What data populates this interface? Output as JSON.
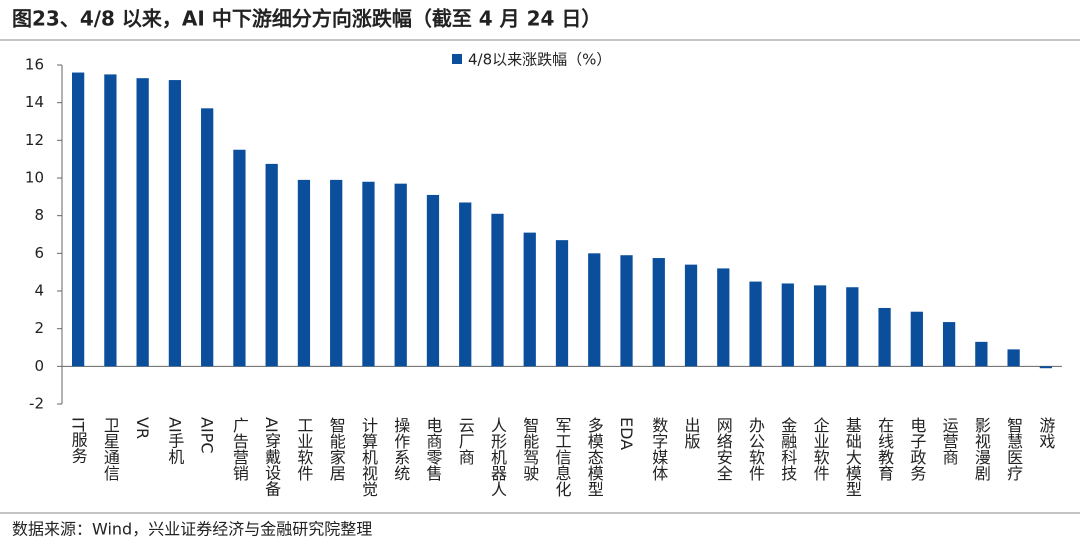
{
  "chart_data": {
    "type": "bar",
    "title": "图23、4/8 以来，AI 中下游细分方向涨跌幅（截至 4 月 24 日）",
    "source": "数据来源：Wind，兴业证券经济与金融研究院整理",
    "categories": [
      "IT服务",
      "卫星通信",
      "VR",
      "AI手机",
      "AIPC",
      "广告营销",
      "AI穿戴设备",
      "工业软件",
      "智能家居",
      "计算机视觉",
      "操作系统",
      "电商零售",
      "云厂商",
      "人形机器人",
      "智能驾驶",
      "军工信息化",
      "多模态模型",
      "EDA",
      "数字媒体",
      "出版",
      "网络安全",
      "办公软件",
      "金融科技",
      "企业软件",
      "基础大模型",
      "在线教育",
      "电子政务",
      "运营商",
      "影视漫剧",
      "智慧医疗",
      "游戏"
    ],
    "series": [
      {
        "name": "4/8以来涨跌幅（%）",
        "color": "#0b4f9c",
        "values": [
          15.6,
          15.5,
          15.3,
          15.2,
          13.7,
          11.5,
          10.75,
          9.9,
          9.9,
          9.8,
          9.7,
          9.1,
          8.7,
          8.1,
          7.1,
          6.7,
          6.0,
          5.9,
          5.75,
          5.4,
          5.2,
          4.5,
          4.4,
          4.3,
          4.2,
          3.1,
          2.9,
          2.35,
          1.3,
          0.9,
          -0.1
        ]
      }
    ],
    "ylim": [
      -2,
      16
    ],
    "yticks": [
      -2,
      0,
      2,
      4,
      6,
      8,
      10,
      12,
      14,
      16
    ],
    "grid": false,
    "legend": "top"
  }
}
